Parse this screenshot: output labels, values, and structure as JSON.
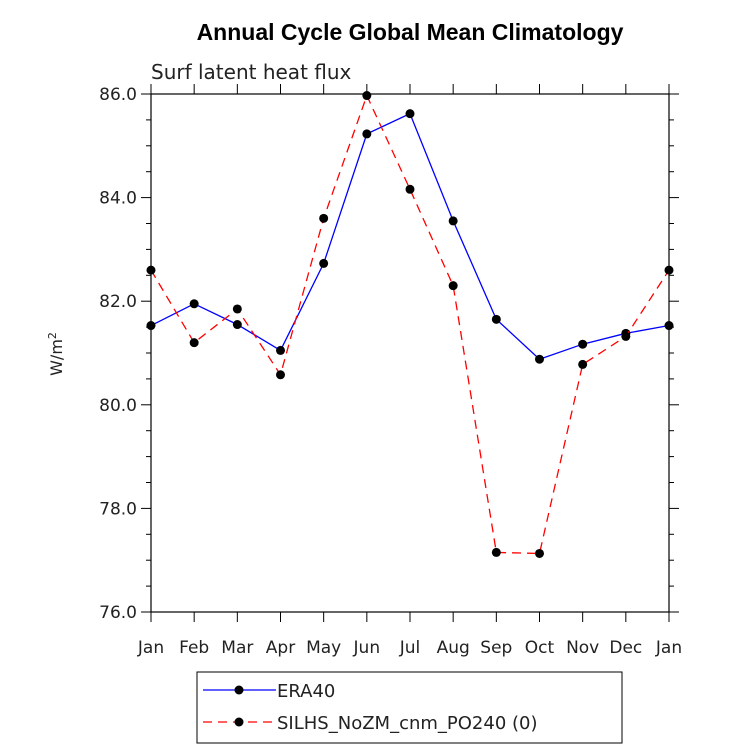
{
  "chart_data": {
    "type": "line",
    "title": "Annual Cycle Global Mean Climatology",
    "subtitle": "Surf latent heat flux",
    "ylabel": "W/m",
    "ylabel_sup": "2",
    "xlabel": "",
    "categories": [
      "Jan",
      "Feb",
      "Mar",
      "Apr",
      "May",
      "Jun",
      "Jul",
      "Aug",
      "Sep",
      "Oct",
      "Nov",
      "Dec",
      "Jan"
    ],
    "ylim": [
      76.0,
      86.0
    ],
    "yticks": [
      "76.0",
      "78.0",
      "80.0",
      "82.0",
      "84.0",
      "86.0"
    ],
    "grid": false,
    "legend_position": "bottom",
    "series": [
      {
        "name": "ERA40",
        "color": "#0000ff",
        "dash": "solid",
        "values": [
          81.53,
          81.95,
          81.55,
          81.05,
          82.73,
          85.23,
          85.62,
          83.55,
          81.65,
          80.88,
          81.17,
          81.38,
          81.53
        ]
      },
      {
        "name": "SILHS_NoZM_cnm_PO240 (0)",
        "color": "#ff0000",
        "dash": "dashed",
        "values": [
          82.6,
          81.2,
          81.85,
          80.58,
          83.6,
          85.97,
          84.16,
          82.3,
          77.15,
          77.13,
          80.78,
          81.32,
          82.6
        ]
      }
    ]
  }
}
